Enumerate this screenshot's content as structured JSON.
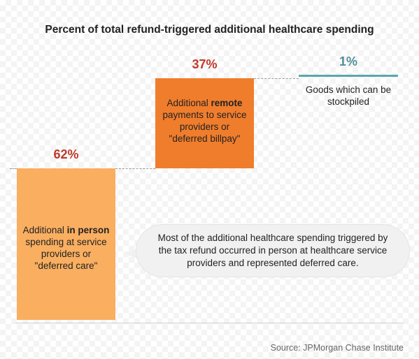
{
  "chart_data": {
    "type": "bar",
    "subtype": "waterfall",
    "title": "Percent of total refund-triggered additional healthcare spending",
    "categories": [
      "Additional in person spending at service providers or \"deferred care\"",
      "Additional remote payments to service providers or \"deferred billpay\"",
      "Goods which can be stockpiled"
    ],
    "values": [
      62,
      37,
      1
    ],
    "value_labels": [
      "62%",
      "37%",
      "1%"
    ],
    "colors": [
      "#f9ae60",
      "#f07d2c",
      "#5aa7ad"
    ],
    "label_colors": [
      "#c0392b",
      "#c0392b",
      "#4f8f97"
    ],
    "ylim": [
      0,
      100
    ],
    "grid": false,
    "legend": "none"
  },
  "bars": [
    {
      "pre": "Additional ",
      "bold": "in person",
      "post": " spending at service providers or \"deferred care\""
    },
    {
      "pre": "Additional ",
      "bold": "remote",
      "post": " payments to service providers or \"deferred billpay\""
    },
    {
      "pre": "",
      "bold": "",
      "post": "Goods which can be stockpiled"
    }
  ],
  "callout": "Most of the additional healthcare spending triggered by the tax refund occurred in person at healthcare service providers and represented deferred care.",
  "source": "Source: JPMorgan Chase Institute"
}
